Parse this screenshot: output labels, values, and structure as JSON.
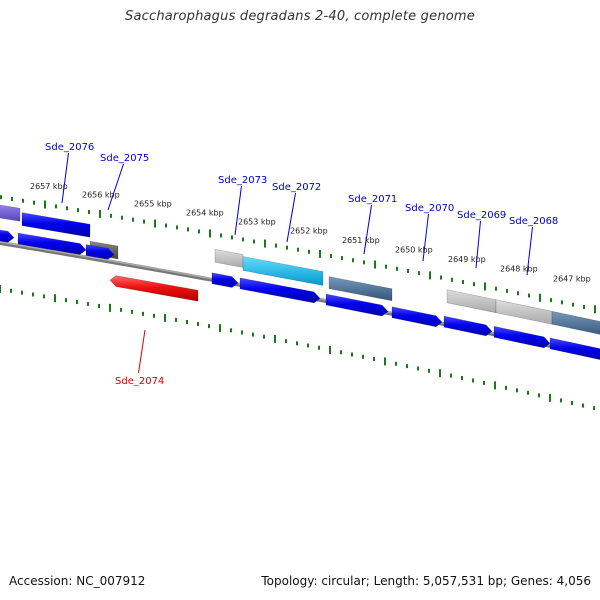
{
  "title": "Saccharophagus degradans 2-40, complete genome",
  "footer": {
    "accession": "Accession: NC_007912",
    "summary": "Topology: circular; Length: 5,057,531 bp; Genes: 4,056"
  },
  "colors": {
    "forward_gene": "#0000ee",
    "reverse_gene": "#ee1111",
    "label_forward": "#0000cc",
    "label_reverse": "#dd0000",
    "backbone": "#777777",
    "tick": "#1a7a1a",
    "annot_gray": "#bbbbbb",
    "annot_cyan": "#11bbee",
    "annot_steel": "#4477aa",
    "annot_purple": "#6655cc",
    "annot_darkgray": "#666666"
  },
  "kbp_labels": [
    "2657 kbp",
    "2656 kbp",
    "2655 kbp",
    "2654 kbp",
    "2653 kbp",
    "2652 kbp",
    "2651 kbp",
    "2650 kbp",
    "2649 kbp",
    "2648 kbp",
    "2647 kbp"
  ],
  "genes": [
    {
      "name": "Sde_2076",
      "strand": "forward"
    },
    {
      "name": "Sde_2075",
      "strand": "forward"
    },
    {
      "name": "Sde_2074",
      "strand": "reverse"
    },
    {
      "name": "Sde_2073",
      "strand": "forward"
    },
    {
      "name": "Sde_2072",
      "strand": "forward"
    },
    {
      "name": "Sde_2071",
      "strand": "forward"
    },
    {
      "name": "Sde_2070",
      "strand": "forward"
    },
    {
      "name": "Sde_2069",
      "strand": "forward"
    },
    {
      "name": "Sde_2068",
      "strand": "forward"
    }
  ]
}
